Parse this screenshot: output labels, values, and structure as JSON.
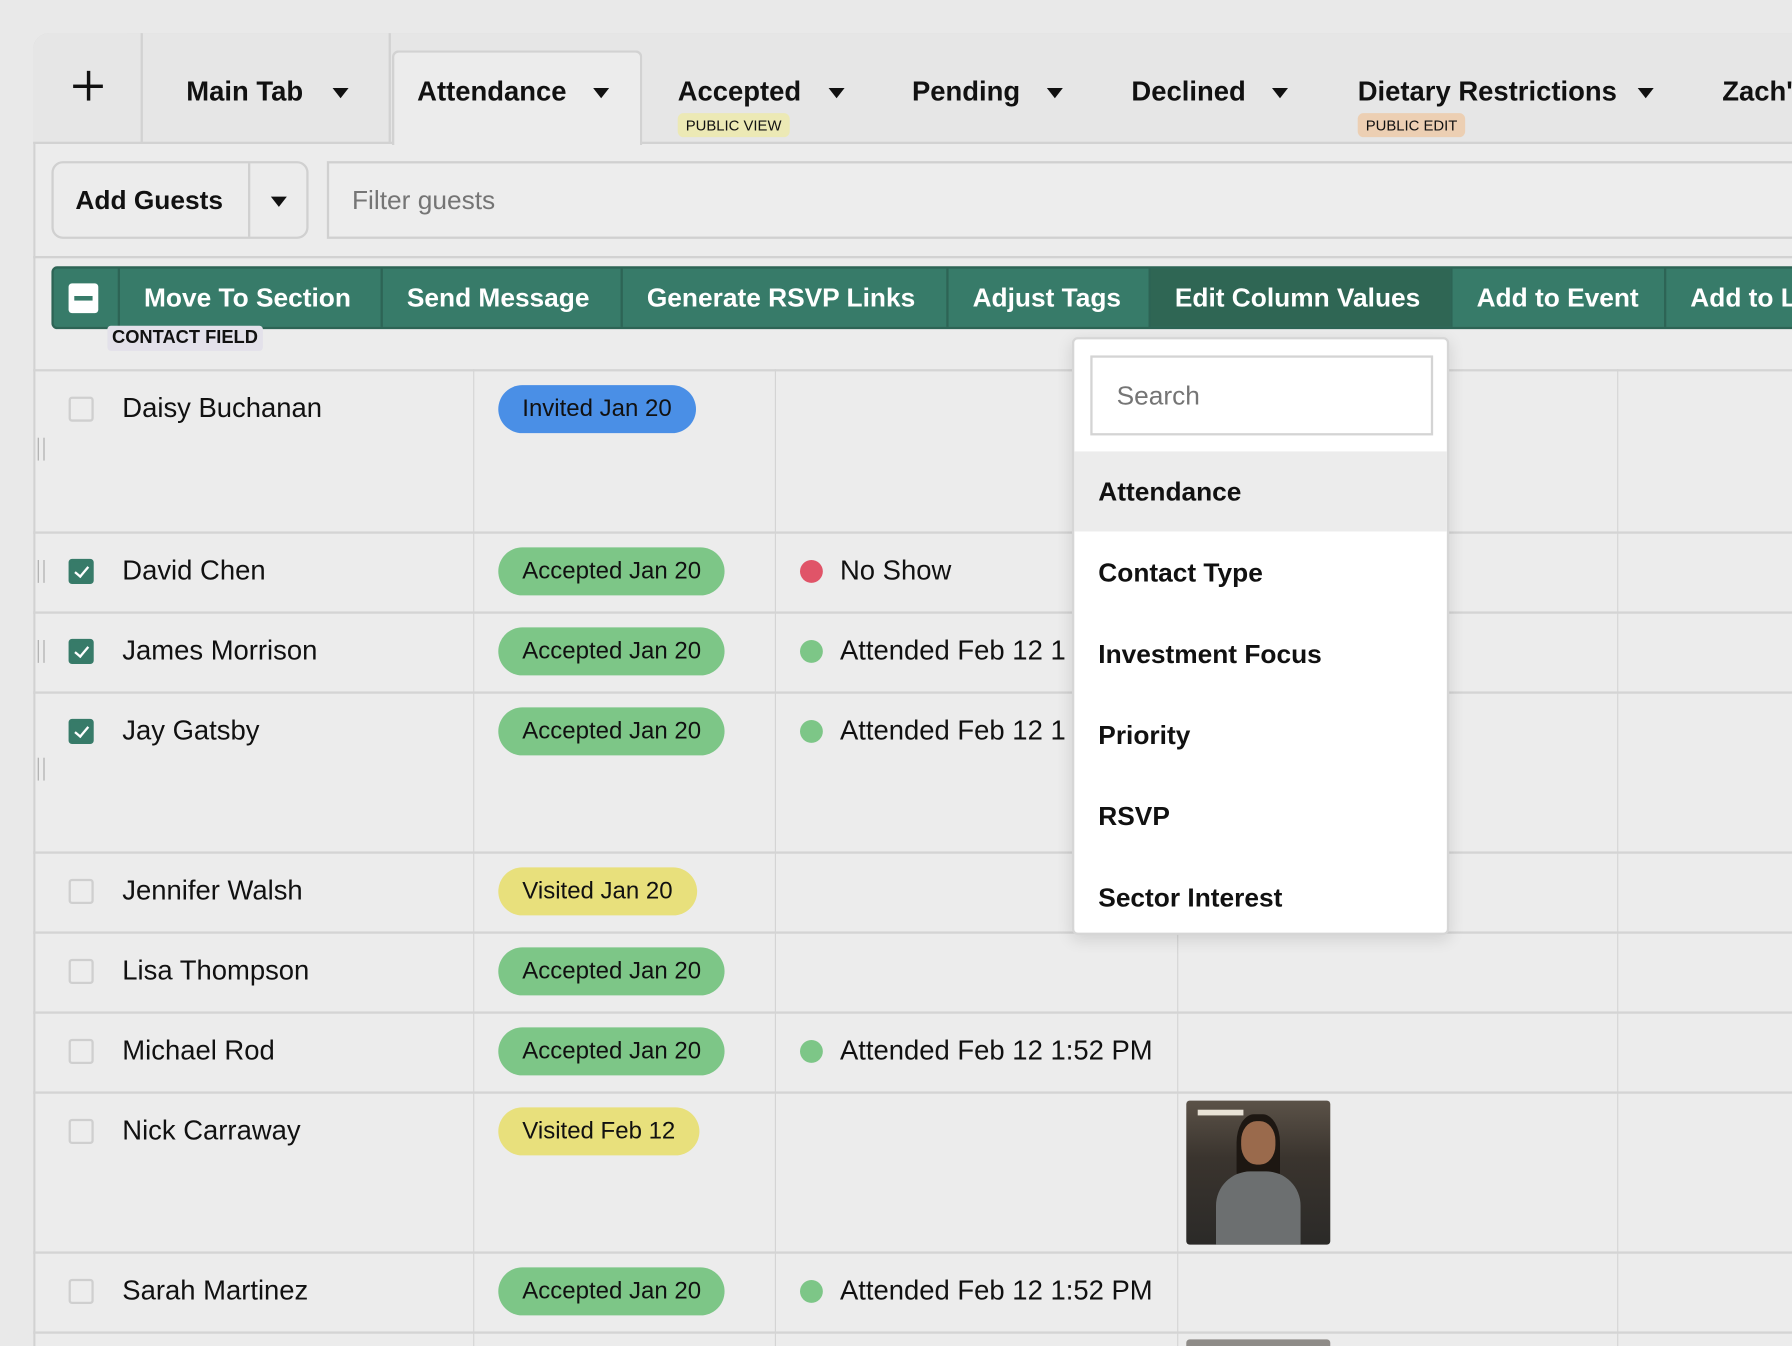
{
  "tabs": {
    "add_icon": "plus-icon",
    "items": [
      {
        "label": "Main Tab",
        "badge": null
      },
      {
        "label": "Attendance",
        "badge": null,
        "active": true
      },
      {
        "label": "Accepted",
        "badge": "PUBLIC VIEW",
        "badge_color": "#ece9b5"
      },
      {
        "label": "Pending",
        "badge": null
      },
      {
        "label": "Declined",
        "badge": null
      },
      {
        "label": "Dietary Restrictions",
        "badge": "PUBLIC EDIT",
        "badge_color": "#eccfb3"
      },
      {
        "label": "Zach's",
        "badge": null
      }
    ]
  },
  "toolbar": {
    "add_guests_label": "Add Guests",
    "filter_placeholder": "Filter guests"
  },
  "actions": {
    "accent": "#377b69",
    "items": [
      "Move To Section",
      "Send Message",
      "Generate RSVP Links",
      "Adjust Tags",
      "Edit Column Values",
      "Add to Event",
      "Add to L"
    ],
    "active": "Edit Column Values",
    "contact_field_label": "CONTACT FIELD"
  },
  "dropdown": {
    "search_placeholder": "Search",
    "items": [
      "Attendance",
      "Contact Type",
      "Investment Focus",
      "Priority",
      "RSVP",
      "Sector Interest"
    ],
    "highlighted": "Attendance"
  },
  "status_colors": {
    "Invited": "#4a8fe6",
    "Accepted": "#7dc687",
    "Visited": "#e8e07c",
    "attended_dot": "#7dc687",
    "no_show_dot": "#e05468"
  },
  "rows": [
    {
      "name": "Daisy Buchanan",
      "checked": false,
      "rsvp": "Invited Jan 20",
      "rsvp_type": "Invited",
      "attendance": null
    },
    {
      "name": "David Chen",
      "checked": true,
      "rsvp": "Accepted Jan 20",
      "rsvp_type": "Accepted",
      "attendance": "No Show",
      "attendance_type": "no_show"
    },
    {
      "name": "James Morrison",
      "checked": true,
      "rsvp": "Accepted Jan 20",
      "rsvp_type": "Accepted",
      "attendance": "Attended Feb 12 1",
      "attendance_type": "attended"
    },
    {
      "name": "Jay Gatsby",
      "checked": true,
      "rsvp": "Accepted Jan 20",
      "rsvp_type": "Accepted",
      "attendance": "Attended Feb 12 1",
      "attendance_type": "attended"
    },
    {
      "name": "Jennifer Walsh",
      "checked": false,
      "rsvp": "Visited Jan 20",
      "rsvp_type": "Visited",
      "attendance": null
    },
    {
      "name": "Lisa Thompson",
      "checked": false,
      "rsvp": "Accepted Jan 20",
      "rsvp_type": "Accepted",
      "attendance": null
    },
    {
      "name": "Michael Rod",
      "checked": false,
      "rsvp": "Accepted Jan 20",
      "rsvp_type": "Accepted",
      "attendance": "Attended Feb 12 1:52 PM",
      "attendance_type": "attended"
    },
    {
      "name": "Nick Carraway",
      "checked": false,
      "rsvp": "Visited Feb 12",
      "rsvp_type": "Visited",
      "attendance": null,
      "photo": true
    },
    {
      "name": "Sarah Martinez",
      "checked": false,
      "rsvp": "Accepted Jan 20",
      "rsvp_type": "Accepted",
      "attendance": "Attended Feb 12 1:52 PM",
      "attendance_type": "attended"
    }
  ]
}
